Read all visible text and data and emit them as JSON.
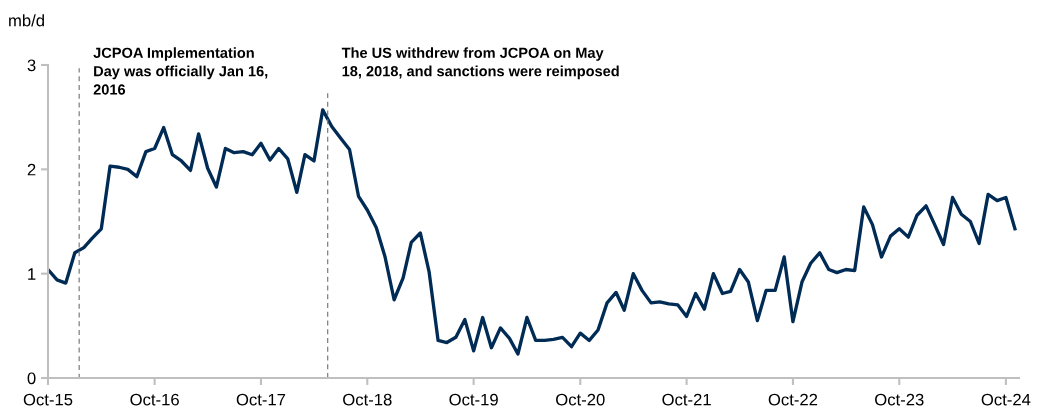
{
  "chart_data": {
    "type": "line",
    "ylabel": "mb/d",
    "x": [
      "2015-10",
      "2015-11",
      "2015-12",
      "2016-01",
      "2016-02",
      "2016-03",
      "2016-04",
      "2016-05",
      "2016-06",
      "2016-07",
      "2016-08",
      "2016-09",
      "2016-10",
      "2016-11",
      "2016-12",
      "2017-01",
      "2017-02",
      "2017-03",
      "2017-04",
      "2017-05",
      "2017-06",
      "2017-07",
      "2017-08",
      "2017-09",
      "2017-10",
      "2017-11",
      "2017-12",
      "2018-01",
      "2018-02",
      "2018-03",
      "2018-04",
      "2018-05",
      "2018-06",
      "2018-07",
      "2018-08",
      "2018-09",
      "2018-10",
      "2018-11",
      "2018-12",
      "2019-01",
      "2019-02",
      "2019-03",
      "2019-04",
      "2019-05",
      "2019-06",
      "2019-07",
      "2019-08",
      "2019-09",
      "2019-10",
      "2019-11",
      "2019-12",
      "2020-01",
      "2020-02",
      "2020-03",
      "2020-04",
      "2020-05",
      "2020-06",
      "2020-07",
      "2020-08",
      "2020-09",
      "2020-10",
      "2020-11",
      "2020-12",
      "2021-01",
      "2021-02",
      "2021-03",
      "2021-04",
      "2021-05",
      "2021-06",
      "2021-07",
      "2021-08",
      "2021-09",
      "2021-10",
      "2021-11",
      "2021-12",
      "2022-01",
      "2022-02",
      "2022-03",
      "2022-04",
      "2022-05",
      "2022-06",
      "2022-07",
      "2022-08",
      "2022-09",
      "2022-10",
      "2022-11",
      "2022-12",
      "2023-01",
      "2023-02",
      "2023-03",
      "2023-04",
      "2023-05",
      "2023-06",
      "2023-07",
      "2023-08",
      "2023-09",
      "2023-10",
      "2023-11",
      "2023-12",
      "2024-01",
      "2024-02",
      "2024-03",
      "2024-04",
      "2024-05",
      "2024-06",
      "2024-07",
      "2024-08",
      "2024-09",
      "2024-10",
      "2024-11"
    ],
    "series": [
      {
        "color": "#002b55",
        "values": [
          1.04,
          0.94,
          0.91,
          1.2,
          1.25,
          1.34,
          1.43,
          2.03,
          2.02,
          2.0,
          1.93,
          2.17,
          2.2,
          2.4,
          2.14,
          2.08,
          1.99,
          2.34,
          2.01,
          1.83,
          2.2,
          2.16,
          2.17,
          2.14,
          2.25,
          2.09,
          2.2,
          2.1,
          1.78,
          2.14,
          2.08,
          2.57,
          2.41,
          2.3,
          2.19,
          1.74,
          1.61,
          1.44,
          1.16,
          0.75,
          0.96,
          1.3,
          1.39,
          1.02,
          0.36,
          0.34,
          0.39,
          0.56,
          0.26,
          0.58,
          0.29,
          0.48,
          0.38,
          0.23,
          0.58,
          0.36,
          0.36,
          0.37,
          0.39,
          0.3,
          0.43,
          0.36,
          0.46,
          0.72,
          0.82,
          0.65,
          1.0,
          0.84,
          0.72,
          0.73,
          0.71,
          0.7,
          0.59,
          0.81,
          0.66,
          1.0,
          0.81,
          0.83,
          1.04,
          0.92,
          0.55,
          0.84,
          0.84,
          1.16,
          0.54,
          0.92,
          1.1,
          1.2,
          1.04,
          1.01,
          1.04,
          1.03,
          1.64,
          1.47,
          1.16,
          1.36,
          1.43,
          1.35,
          1.56,
          1.65,
          1.46,
          1.28,
          1.73,
          1.57,
          1.5,
          1.29,
          1.76,
          1.7,
          1.73,
          1.43
        ]
      }
    ],
    "xlim": [
      "2015-10",
      "2024-11-15"
    ],
    "xticks": [
      {
        "value": "2015-10",
        "label": "Oct-15"
      },
      {
        "value": "2016-10",
        "label": "Oct-16"
      },
      {
        "value": "2017-10",
        "label": "Oct-17"
      },
      {
        "value": "2018-10",
        "label": "Oct-18"
      },
      {
        "value": "2019-10",
        "label": "Oct-19"
      },
      {
        "value": "2020-10",
        "label": "Oct-20"
      },
      {
        "value": "2021-10",
        "label": "Oct-21"
      },
      {
        "value": "2022-10",
        "label": "Oct-22"
      },
      {
        "value": "2023-10",
        "label": "Oct-23"
      },
      {
        "value": "2024-10",
        "label": "Oct-24"
      }
    ],
    "ylim": [
      0,
      3
    ],
    "yticks": [
      0,
      1,
      2,
      3
    ],
    "ref_lines": [
      {
        "axis": "x",
        "value": "2016-01-16",
        "label": "JCPOA Implementation\nDay was officially Jan 16,\n2016",
        "color": "#7f7f7f",
        "line_style": "dashed"
      },
      {
        "axis": "x",
        "value": "2018-05-18",
        "label": "The US withdrew from JCPOA on May\n18, 2018, and sanctions were reimposed",
        "color": "#7f7f7f",
        "line_style": "dashed"
      }
    ],
    "grid": false,
    "legend": false,
    "marker": "none",
    "line_style": "solid"
  }
}
